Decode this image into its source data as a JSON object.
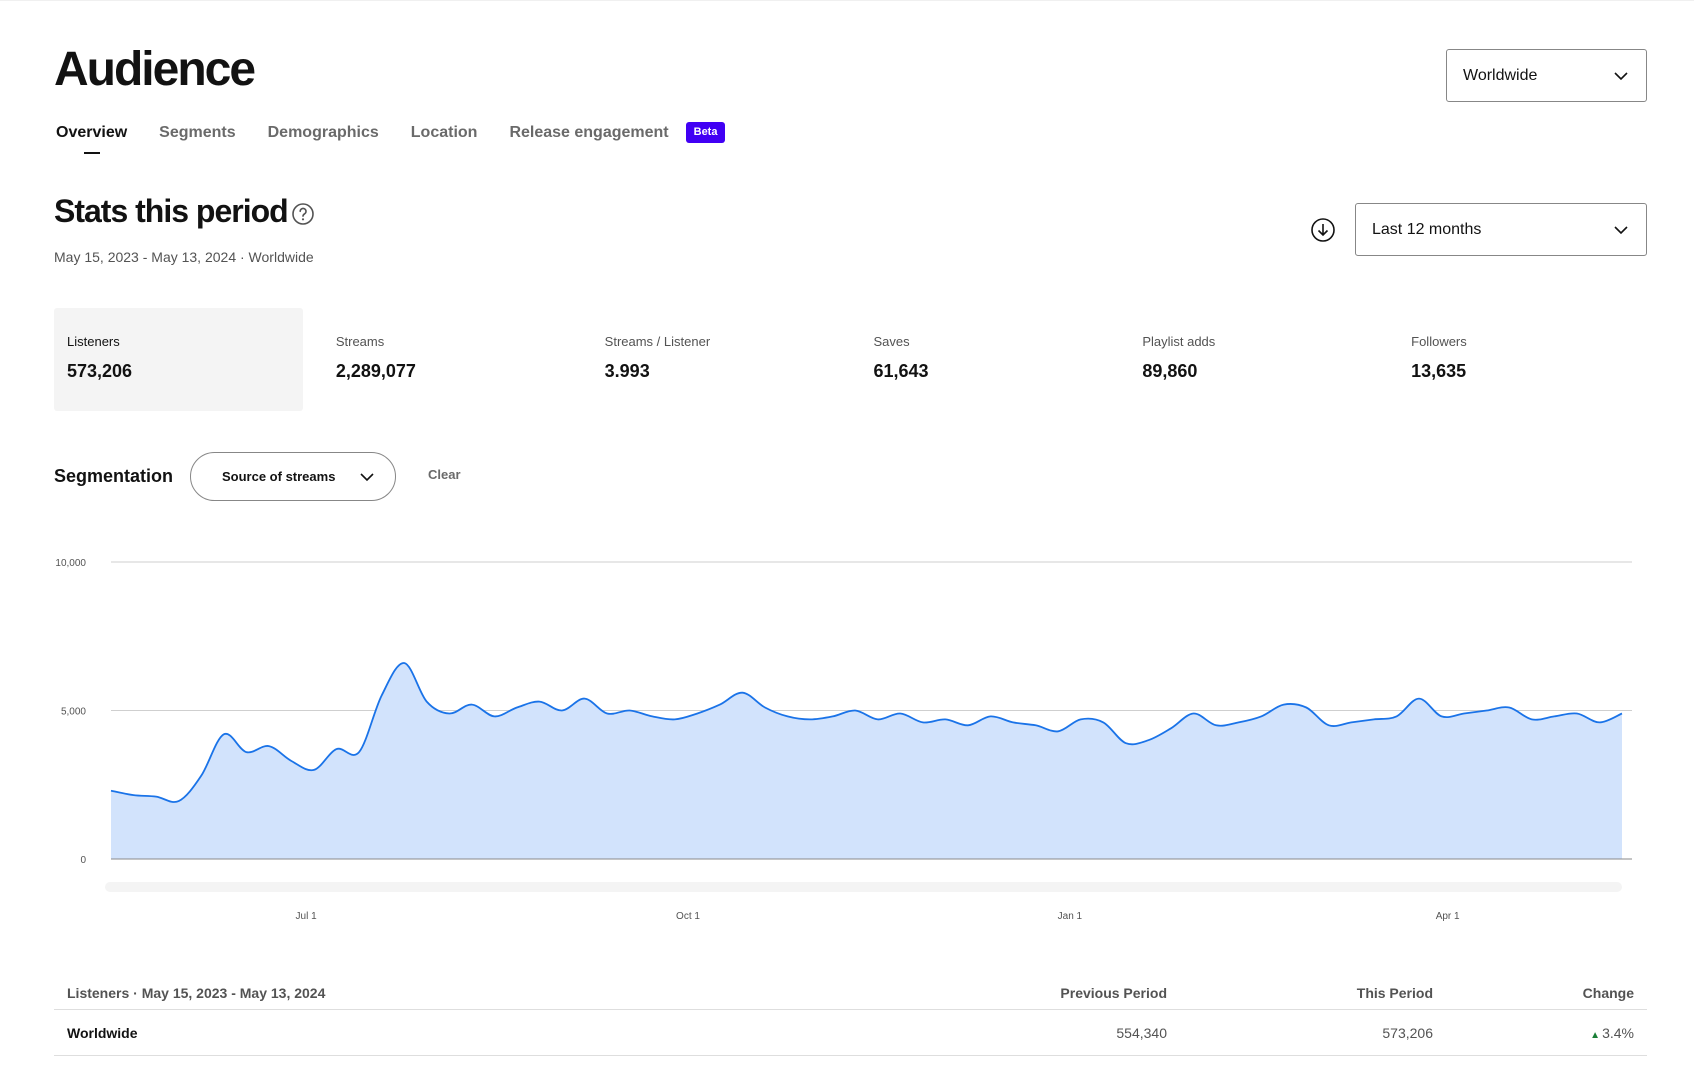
{
  "page": {
    "title": "Audience",
    "region_select": "Worldwide"
  },
  "tabs": [
    {
      "label": "Overview",
      "active": true
    },
    {
      "label": "Segments",
      "active": false
    },
    {
      "label": "Demographics",
      "active": false
    },
    {
      "label": "Location",
      "active": false
    },
    {
      "label": "Release engagement",
      "active": false,
      "badge": "Beta"
    }
  ],
  "stats": {
    "title": "Stats this period",
    "subtitle": "May 15, 2023 - May 13, 2024 · Worldwide",
    "range_select": "Last 12 months"
  },
  "kpis": [
    {
      "label": "Listeners",
      "value": "573,206",
      "active": true
    },
    {
      "label": "Streams",
      "value": "2,289,077",
      "active": false
    },
    {
      "label": "Streams / Listener",
      "value": "3.993",
      "active": false
    },
    {
      "label": "Saves",
      "value": "61,643",
      "active": false
    },
    {
      "label": "Playlist adds",
      "value": "89,860",
      "active": false
    },
    {
      "label": "Followers",
      "value": "13,635",
      "active": false
    }
  ],
  "segmentation": {
    "label": "Segmentation",
    "select": "Source of streams",
    "clear_label": "Clear"
  },
  "chart_data": {
    "type": "area",
    "y_ticks": [
      "10,000",
      "5,000",
      "0"
    ],
    "ylim": [
      0,
      10000
    ],
    "x_ticks": [
      "Jul 1",
      "Oct 1",
      "Jan 1",
      "Apr 1"
    ],
    "x_start": "2023-05-15",
    "x_end": "2024-05-13",
    "x_tick_dates": [
      "2023-07-01",
      "2023-10-01",
      "2024-01-01",
      "2024-04-01"
    ],
    "grid": true,
    "colors": {
      "line": "#1a73e8",
      "fill": "#d2e3fc"
    },
    "weekly_listeners": [
      2300,
      2150,
      2100,
      1950,
      2800,
      4200,
      3600,
      3800,
      3300,
      3000,
      3700,
      3600,
      5500,
      6600,
      5300,
      4900,
      5200,
      4800,
      5100,
      5300,
      5000,
      5400,
      4900,
      5000,
      4800,
      4700,
      4900,
      5200,
      5600,
      5100,
      4800,
      4700,
      4800,
      5000,
      4700,
      4900,
      4600,
      4700,
      4500,
      4800,
      4600,
      4500,
      4300,
      4700,
      4600,
      3900,
      4000,
      4400,
      4900,
      4500,
      4600,
      4800,
      5200,
      5100,
      4500,
      4600,
      4700,
      4800,
      5400,
      4800,
      4900,
      5000,
      5100,
      4700,
      4800,
      4900,
      4600,
      4900
    ]
  },
  "table": {
    "header": {
      "c1": "Listeners · May 15, 2023 - May 13, 2024",
      "c2": "Previous Period",
      "c3": "This Period",
      "c4": "Change"
    },
    "rows": [
      {
        "c1": "Worldwide",
        "c2": "554,340",
        "c3": "573,206",
        "c4": "3.4%"
      }
    ]
  }
}
